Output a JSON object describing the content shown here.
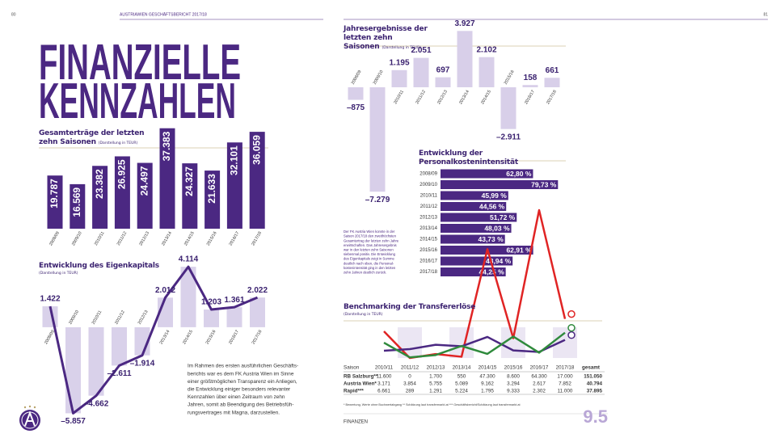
{
  "header": {
    "left_page_number": "80",
    "publication": "AUSTRIAWIEN GESCHÄFTSBERICHT 2017/18",
    "right_page_number": "81"
  },
  "headline": [
    "FINANZIELLE",
    "KENNZAHLEN"
  ],
  "body_text": [
    "Im Rahmen des ersten ausführlichen Geschäfts-",
    "berichts war es dem FK Austria Wien im Sinne",
    "einer größtmöglichen Transparenz ein Anliegen,",
    "die Entwicklung einiger besonders relevanter",
    "Kennzahlen über einen Zeitraum von zehn",
    "Jahren, somit ab Beendigung des Betriebsfüh-",
    "rungsvertrages mit Magna, darzustellen."
  ],
  "side_note": [
    "Der FK Austria Wien konnte in der",
    "Saison 2017/18 den zweithöchsten",
    "Gesamtertrag der letzten zehn Jahre",
    "erwirtschaften. Das Jahresergebnis",
    "war in den letzten zehn Saisonen",
    "siebenmal positiv. Die Entwicklung",
    "des Eigenkapitals zeigt in Summe",
    "deutlich nach oben, die Personal-",
    "kostenintensität ging in den letzten",
    "zehn Jahren deutlich zurück."
  ],
  "footnote": "* Bewertung, Werte ohne Buchwertabgang ** Schätzung laut transfermarkt.at *** Geschäftsbericht/Schätzung laut transfermarkt.at",
  "section": "FINANZEN",
  "section_number": "9.5",
  "chart_data": [
    {
      "type": "bar",
      "title": "Gesamterträge der letzten zehn Saisonen",
      "subtitle": "(Darstellung in TEUR)",
      "color": "#4b2882",
      "categories": [
        "2008/09",
        "2009/10",
        "2010/11",
        "2011/12",
        "2012/13",
        "2013/14",
        "2014/15",
        "2015/16",
        "2016/17",
        "2017/18"
      ],
      "values": [
        19787,
        16569,
        23382,
        26925,
        24497,
        37383,
        24327,
        21633,
        32101,
        36059
      ],
      "value_labels": [
        "19.787",
        "16.569",
        "23.382",
        "26.925",
        "24.497",
        "37.383",
        "24.327",
        "21.633",
        "32.101",
        "36.059"
      ],
      "ylim": [
        0,
        40000
      ]
    },
    {
      "type": "combo",
      "title": "Entwicklung des Eigenkapitals",
      "subtitle": "(Darstellung in TEUR)",
      "color": "#d9d1ea",
      "line_color": "#4b2882",
      "categories": [
        "2008/09",
        "2009/10",
        "2010/11",
        "2011/12",
        "2012/13",
        "2013/14",
        "2014/15",
        "2015/16",
        "2016/17",
        "2017/18"
      ],
      "values": [
        1422,
        -5857,
        -4662,
        -2611,
        -1914,
        2012,
        4114,
        1203,
        1361,
        2022
      ],
      "value_labels": [
        "1.422",
        "–5.857",
        "–4.662",
        "–2.611",
        "–1.914",
        "2.012",
        "4.114",
        "1.203",
        "1.361",
        "2.022"
      ],
      "ylim": [
        -6000,
        5000
      ]
    },
    {
      "type": "bar",
      "title": "Jahresergebnisse der letzten zehn Saisonen",
      "subtitle": "(Darstellung in TEUR)",
      "color": "#d8cfe9",
      "categories": [
        "2008/09",
        "2009/10",
        "2010/11",
        "2011/12",
        "2012/13",
        "2013/14",
        "2014/15",
        "2015/16",
        "2016/17",
        "2017/18"
      ],
      "values": [
        -875,
        -7279,
        1195,
        2051,
        697,
        3927,
        2102,
        -2911,
        158,
        661
      ],
      "value_labels": [
        "–875",
        "–7.279",
        "1.195",
        "2.051",
        "697",
        "3.927",
        "2.102",
        "–2.911",
        "158",
        "661"
      ],
      "ylim": [
        -8000,
        4000
      ]
    },
    {
      "type": "hbar",
      "title": "Entwicklung der Personalkostenintensität",
      "color": "#4b2882",
      "categories": [
        "2008/09",
        "2009/10",
        "2010/11",
        "2011/12",
        "2012/13",
        "2013/14",
        "2014/15",
        "2015/16",
        "2016/17",
        "2017/18"
      ],
      "values": [
        62.8,
        79.73,
        45.99,
        44.56,
        51.72,
        48.03,
        43.73,
        62.91,
        48.94,
        44.25
      ],
      "value_labels": [
        "62,80 %",
        "79,73 %",
        "45,99 %",
        "44,56 %",
        "51,72 %",
        "48,03 %",
        "43,73 %",
        "62,91 %",
        "48,94 %",
        "44,25 %"
      ],
      "xlim": [
        0,
        80
      ]
    },
    {
      "type": "line",
      "title": "Benchmarking der Transfererlöse",
      "subtitle": "(Darstellung in TEUR)",
      "table_header": "Saison",
      "total_header": "gesamt",
      "categories": [
        "2010/11",
        "2011/12",
        "2012/13",
        "2013/14",
        "2014/15",
        "2015/16",
        "2016/17",
        "2017/18"
      ],
      "series": [
        {
          "name": "RB Salzburg**",
          "color": "#e02424",
          "values": [
            11600,
            0,
            1700,
            550,
            47300,
            8600,
            64300,
            17000
          ],
          "value_labels": [
            "11.600",
            "0",
            "1.700",
            "550",
            "47.300",
            "8.600",
            "64.300",
            "17.000"
          ],
          "total": 151050,
          "total_label": "151.050"
        },
        {
          "name": "Austria Wien*",
          "color": "#4b2882",
          "values": [
            3171,
            3854,
            5755,
            5089,
            9162,
            3294,
            2617,
            7852
          ],
          "value_labels": [
            "3.171",
            "3.854",
            "5.755",
            "5.089",
            "9.162",
            "3.294",
            "2.617",
            "7.852"
          ],
          "total": 40794,
          "total_label": "40.794"
        },
        {
          "name": "Rapid***",
          "color": "#2f8a3c",
          "values": [
            6661,
            289,
            1291,
            5224,
            1795,
            9333,
            2302,
            11000
          ],
          "value_labels": [
            "6.661",
            "289",
            "1.291",
            "5.224",
            "1.795",
            "9.333",
            "2.302",
            "11.000"
          ],
          "total": 37895,
          "total_label": "37.895"
        }
      ],
      "ylim": [
        0,
        65000
      ]
    }
  ]
}
